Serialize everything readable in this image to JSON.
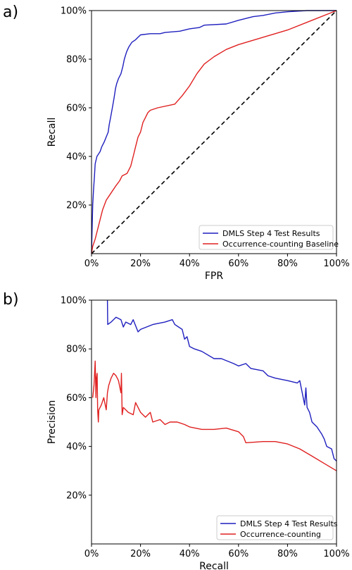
{
  "chart_data": [
    {
      "type": "line",
      "panel_label": "a)",
      "xlabel": "FPR",
      "ylabel": "Recall",
      "xlim": [
        0,
        100
      ],
      "ylim": [
        0,
        100
      ],
      "x_ticks": [
        "0%",
        "20%",
        "40%",
        "60%",
        "80%",
        "100%"
      ],
      "y_ticks": [
        "20%",
        "40%",
        "60%",
        "80%",
        "100%"
      ],
      "legend_position": "bottom-right",
      "series": [
        {
          "name": "DMLS Step 4 Test Results",
          "color": "#1f1fbf",
          "points": [
            [
              0,
              0
            ],
            [
              0.3,
              12
            ],
            [
              0.5,
              20
            ],
            [
              0.8,
              26
            ],
            [
              1.2,
              32
            ],
            [
              1.5,
              37
            ],
            [
              2.2,
              40
            ],
            [
              3.5,
              42
            ],
            [
              4.2,
              44
            ],
            [
              5.2,
              46
            ],
            [
              6,
              48
            ],
            [
              6.8,
              50
            ],
            [
              7.2,
              53
            ],
            [
              7.8,
              56
            ],
            [
              8.5,
              60
            ],
            [
              9.2,
              64
            ],
            [
              9.8,
              68
            ],
            [
              10.3,
              70
            ],
            [
              11,
              72
            ],
            [
              12,
              74
            ],
            [
              12.8,
              77
            ],
            [
              13.4,
              80
            ],
            [
              14.3,
              83
            ],
            [
              15.2,
              85
            ],
            [
              16.5,
              87
            ],
            [
              18,
              88
            ],
            [
              19,
              89
            ],
            [
              20,
              90
            ],
            [
              24,
              90.5
            ],
            [
              28,
              90.5
            ],
            [
              30,
              91
            ],
            [
              36,
              91.5
            ],
            [
              40,
              92.5
            ],
            [
              44,
              93
            ],
            [
              46,
              94
            ],
            [
              55,
              94.5
            ],
            [
              60,
              96
            ],
            [
              66,
              97.5
            ],
            [
              70,
              98
            ],
            [
              75,
              99
            ],
            [
              80,
              99.5
            ],
            [
              88,
              100
            ],
            [
              100,
              100
            ]
          ]
        },
        {
          "name": "Occurrence-counting Baseline",
          "color": "#e02020",
          "points": [
            [
              0,
              0
            ],
            [
              0.5,
              3
            ],
            [
              1.5,
              6
            ],
            [
              2.5,
              10
            ],
            [
              3.5,
              14
            ],
            [
              4.5,
              18
            ],
            [
              6,
              22
            ],
            [
              8,
              25
            ],
            [
              10,
              28
            ],
            [
              11.5,
              30
            ],
            [
              12.5,
              32
            ],
            [
              14.5,
              33
            ],
            [
              16,
              36
            ],
            [
              17,
              40
            ],
            [
              18,
              44
            ],
            [
              19,
              48
            ],
            [
              20,
              50
            ],
            [
              21,
              54
            ],
            [
              22,
              56
            ],
            [
              23,
              58
            ],
            [
              24,
              59
            ],
            [
              27,
              60
            ],
            [
              34,
              61.5
            ],
            [
              37,
              65
            ],
            [
              40,
              69
            ],
            [
              43,
              74
            ],
            [
              46,
              78
            ],
            [
              50,
              81
            ],
            [
              55,
              84
            ],
            [
              60,
              86
            ],
            [
              70,
              89
            ],
            [
              80,
              92
            ],
            [
              90,
              96
            ],
            [
              100,
              100
            ]
          ]
        }
      ],
      "reference_line": {
        "type": "diagonal",
        "color": "#000000",
        "style": "dashed"
      }
    },
    {
      "type": "line",
      "panel_label": "b)",
      "xlabel": "Recall",
      "ylabel": "Precision",
      "xlim": [
        0,
        100
      ],
      "ylim": [
        0,
        100
      ],
      "x_ticks": [
        "0%",
        "20%",
        "40%",
        "60%",
        "80%",
        "100%"
      ],
      "y_ticks": [
        "20%",
        "40%",
        "60%",
        "80%",
        "100%"
      ],
      "legend_position": "bottom-right",
      "series": [
        {
          "name": "DMLS Step 4 Test Results",
          "color": "#1f1fbf",
          "points": [
            [
              6.5,
              100
            ],
            [
              6.6,
              90
            ],
            [
              8,
              91
            ],
            [
              10,
              93
            ],
            [
              12,
              92
            ],
            [
              13,
              89
            ],
            [
              14,
              91
            ],
            [
              16,
              90
            ],
            [
              17,
              92
            ],
            [
              19,
              87
            ],
            [
              20,
              88
            ],
            [
              25,
              90
            ],
            [
              30,
              91
            ],
            [
              33,
              92
            ],
            [
              34,
              90
            ],
            [
              37,
              88
            ],
            [
              38,
              84
            ],
            [
              39,
              85
            ],
            [
              40,
              81
            ],
            [
              42,
              80
            ],
            [
              45,
              79
            ],
            [
              50,
              76
            ],
            [
              53,
              76
            ],
            [
              58,
              74
            ],
            [
              60,
              73
            ],
            [
              63,
              74
            ],
            [
              65,
              72
            ],
            [
              70,
              71
            ],
            [
              72,
              69
            ],
            [
              75,
              68
            ],
            [
              80,
              67
            ],
            [
              84,
              66
            ],
            [
              85,
              67
            ],
            [
              86,
              62
            ],
            [
              87,
              57
            ],
            [
              87.5,
              64
            ],
            [
              88,
              56
            ],
            [
              89,
              54
            ],
            [
              90,
              50
            ],
            [
              92,
              48
            ],
            [
              94,
              45
            ],
            [
              95,
              43
            ],
            [
              96,
              40
            ],
            [
              98,
              39
            ],
            [
              99,
              35
            ],
            [
              100,
              34
            ]
          ]
        },
        {
          "name": "Occurrence-counting",
          "color": "#e02020",
          "points": [
            [
              0.5,
              60
            ],
            [
              1,
              65
            ],
            [
              1.5,
              75
            ],
            [
              1.8,
              60
            ],
            [
              2,
              68
            ],
            [
              2.3,
              70
            ],
            [
              2.5,
              55
            ],
            [
              2.8,
              50
            ],
            [
              3,
              55
            ],
            [
              4,
              57
            ],
            [
              5,
              60
            ],
            [
              6,
              55
            ],
            [
              6.5,
              62
            ],
            [
              7,
              65
            ],
            [
              8,
              68
            ],
            [
              9,
              70
            ],
            [
              10,
              69
            ],
            [
              11,
              67
            ],
            [
              12,
              62
            ],
            [
              12.2,
              70
            ],
            [
              12.5,
              53
            ],
            [
              13,
              56
            ],
            [
              15,
              54
            ],
            [
              17,
              53
            ],
            [
              18,
              58
            ],
            [
              20,
              54
            ],
            [
              22,
              52
            ],
            [
              24,
              54
            ],
            [
              25,
              50
            ],
            [
              28,
              51
            ],
            [
              30,
              49
            ],
            [
              32,
              50
            ],
            [
              35,
              50
            ],
            [
              38,
              49
            ],
            [
              40,
              48
            ],
            [
              45,
              47
            ],
            [
              50,
              47
            ],
            [
              55,
              47.5
            ],
            [
              60,
              46
            ],
            [
              62,
              44
            ],
            [
              63,
              41.5
            ],
            [
              70,
              42
            ],
            [
              75,
              42
            ],
            [
              80,
              41
            ],
            [
              85,
              39
            ],
            [
              90,
              36
            ],
            [
              95,
              33
            ],
            [
              100,
              30
            ]
          ]
        }
      ]
    }
  ]
}
